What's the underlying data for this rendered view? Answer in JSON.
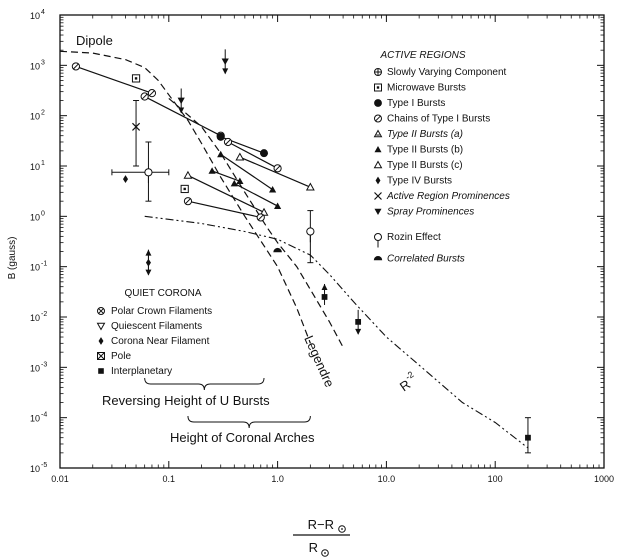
{
  "chart_data": {
    "type": "scatter",
    "xscale": "log",
    "yscale": "log",
    "xlim": [
      0.01,
      1000
    ],
    "ylim": [
      1e-05,
      10000
    ],
    "xticks": [
      "0.01",
      "0.1",
      "1.0",
      "10.0",
      "100",
      "1000"
    ],
    "yticks": [
      {
        "base": "10",
        "exp": "4"
      },
      {
        "base": "10",
        "exp": "3"
      },
      {
        "base": "10",
        "exp": "2"
      },
      {
        "base": "10",
        "exp": "1"
      },
      {
        "base": "10",
        "exp": "0"
      },
      {
        "base": "10",
        "exp": "-1"
      },
      {
        "base": "10",
        "exp": "-2"
      },
      {
        "base": "10",
        "exp": "-3"
      },
      {
        "base": "10",
        "exp": "-4"
      },
      {
        "base": "10",
        "exp": "-5"
      }
    ],
    "ylabel": "B (gauss)",
    "xlabel_num": "R−R",
    "xlabel_den": "R",
    "legend_active": {
      "title": "ACTIVE REGIONS",
      "items": [
        {
          "symbol": "circle-plus",
          "label": "Slowly Varying Component",
          "italic": false
        },
        {
          "symbol": "square-dot",
          "label": "Microwave Bursts",
          "italic": false
        },
        {
          "symbol": "circle-filled",
          "label": "Type I Bursts",
          "italic": false
        },
        {
          "symbol": "circle-slash",
          "label": "Chains of Type I Bursts",
          "italic": false
        },
        {
          "symbol": "triangle-hatched",
          "label": "Type II Bursts (a)",
          "italic": true
        },
        {
          "symbol": "triangle-filled",
          "label": "Type II Bursts (b)",
          "italic": false
        },
        {
          "symbol": "triangle-open",
          "label": "Type II Bursts (c)",
          "italic": false
        },
        {
          "symbol": "diamond-filled",
          "label": "Type IV Bursts",
          "italic": false
        },
        {
          "symbol": "cross",
          "label": "Active Region Prominences",
          "italic": true
        },
        {
          "symbol": "triangle-down-filled",
          "label": "Spray Prominences",
          "italic": true
        },
        {
          "symbol": "lollipop",
          "label": "Rozin Effect",
          "italic": false
        },
        {
          "symbol": "half-circle",
          "label": "Correlated Bursts",
          "italic": true
        }
      ]
    },
    "legend_quiet": {
      "title": "QUIET CORONA",
      "items": [
        {
          "symbol": "circle-x",
          "label": "Polar Crown Filaments"
        },
        {
          "symbol": "triangle-down-open",
          "label": "Quiescent Filaments"
        },
        {
          "symbol": "diamond-filled",
          "label": "Corona Near Filament"
        },
        {
          "symbol": "square-x",
          "label": "Pole"
        },
        {
          "symbol": "square-filled",
          "label": "Interplanetary"
        }
      ]
    },
    "curve_labels": {
      "dipole": "Dipole",
      "legendre": "Legendre",
      "r2": "R",
      "r2_exp": "-2"
    },
    "bracket_labels": {
      "u_bursts": "Reversing Height of U Bursts",
      "arches": "Height of Coronal Arches"
    },
    "curves": {
      "dipole": [
        [
          0.01,
          1900
        ],
        [
          0.02,
          1750
        ],
        [
          0.04,
          1300
        ],
        [
          0.06,
          900
        ],
        [
          0.08,
          500
        ],
        [
          0.1,
          260
        ],
        [
          0.15,
          80
        ],
        [
          0.2,
          28
        ],
        [
          0.3,
          6
        ],
        [
          0.5,
          1.0
        ],
        [
          1.0,
          0.1
        ],
        [
          1.5,
          0.015
        ],
        [
          2.0,
          0.003
        ]
      ],
      "legendre": [
        [
          0.1,
          220
        ],
        [
          0.2,
          60
        ],
        [
          0.3,
          18
        ],
        [
          0.5,
          3
        ],
        [
          0.8,
          0.6
        ],
        [
          1.0,
          0.3
        ],
        [
          1.5,
          0.1
        ],
        [
          2.0,
          0.035
        ],
        [
          3.0,
          0.008
        ],
        [
          4.0,
          0.0025
        ]
      ],
      "r2": [
        [
          0.06,
          1.0
        ],
        [
          0.2,
          0.72
        ],
        [
          0.5,
          0.5
        ],
        [
          1.0,
          0.35
        ],
        [
          2.0,
          0.17
        ],
        [
          3.0,
          0.07
        ],
        [
          5.0,
          0.02
        ],
        [
          10,
          0.004
        ],
        [
          20,
          0.0011
        ],
        [
          50,
          0.0002
        ],
        [
          100,
          8e-05
        ],
        [
          200,
          2.5e-05
        ]
      ]
    },
    "segments": [
      {
        "symbol": "circle-slash",
        "points": [
          [
            0.014,
            950
          ],
          [
            0.07,
            280
          ]
        ]
      },
      {
        "symbol": "circle-slash",
        "points": [
          [
            0.06,
            240
          ],
          [
            0.3,
            40
          ]
        ]
      },
      {
        "symbol": "circle-filled",
        "points": [
          [
            0.3,
            38
          ],
          [
            0.75,
            18
          ]
        ]
      },
      {
        "symbol": "circle-slash",
        "points": [
          [
            0.35,
            30
          ],
          [
            1.0,
            9
          ]
        ]
      },
      {
        "symbol": "triangle-open",
        "points": [
          [
            0.45,
            15
          ],
          [
            2.0,
            3.8
          ]
        ]
      },
      {
        "symbol": "triangle-filled",
        "points": [
          [
            0.3,
            17
          ],
          [
            0.9,
            3.4
          ]
        ]
      },
      {
        "symbol": "triangle-open",
        "points": [
          [
            0.15,
            6.5
          ],
          [
            0.75,
            1.2
          ]
        ]
      },
      {
        "symbol": "triangle-filled",
        "points": [
          [
            0.4,
            4.5
          ],
          [
            1.0,
            1.6
          ]
        ]
      },
      {
        "symbol": "circle-slash",
        "points": [
          [
            0.15,
            2.0
          ],
          [
            0.7,
            0.95
          ]
        ]
      },
      {
        "symbol": "triangle-filled",
        "points": [
          [
            0.25,
            8
          ],
          [
            0.45,
            5
          ]
        ]
      }
    ],
    "points": [
      {
        "symbol": "square-dot",
        "x": 0.05,
        "y": 550
      },
      {
        "symbol": "square-dot",
        "x": 0.14,
        "y": 3.5
      },
      {
        "symbol": "cross",
        "x": 0.05,
        "y": 60,
        "yerr": [
          10,
          200
        ]
      },
      {
        "symbol": "diamond-filled",
        "x": 0.04,
        "y": 5.5
      },
      {
        "symbol": "lollipop",
        "x": 0.065,
        "y": 7.5,
        "xerr": [
          0.03,
          0.1
        ],
        "yerr": [
          2,
          30
        ]
      },
      {
        "symbol": "lollipop",
        "x": 2.0,
        "y": 0.5,
        "yerr": [
          0.12,
          1.3
        ]
      },
      {
        "symbol": "triangle-down-filled",
        "x": 0.13,
        "y": 200,
        "arrow": "down"
      },
      {
        "symbol": "triangle-down-filled",
        "x": 0.33,
        "y": 1200,
        "arrow": "down"
      },
      {
        "symbol": "diamond-filled",
        "x": 0.065,
        "y": 0.12,
        "arrow": "updown"
      },
      {
        "symbol": "square-filled",
        "x": 2.7,
        "y": 0.025,
        "arrow": "up"
      },
      {
        "symbol": "square-filled",
        "x": 5.5,
        "y": 0.008,
        "arrow": "down"
      },
      {
        "symbol": "half-circle",
        "x": 1.0,
        "y": 0.21
      },
      {
        "symbol": "square-filled",
        "x": 200,
        "y": 4e-05,
        "yerr": [
          2e-05,
          0.0001
        ]
      }
    ]
  }
}
